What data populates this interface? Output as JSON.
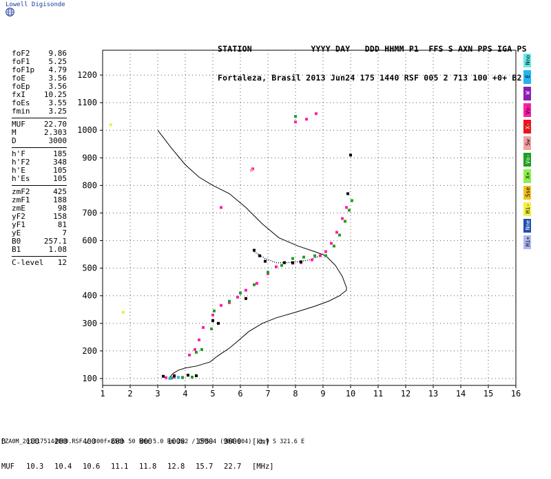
{
  "brand": "Lowell Digisonde",
  "header": {
    "line1": "STATION            YYYY DAY   DDD HHMM P1  FFS S AXN PPS IGA PS",
    "line2": "Fortaleza, Brasil 2013 Jun24 175 1440 RSF 005 2 713 100 +0+ B2"
  },
  "params": [
    {
      "label": "foF2",
      "value": "9.86"
    },
    {
      "label": "foF1",
      "value": "5.25"
    },
    {
      "label": "foF1p",
      "value": "4.79"
    },
    {
      "label": "foE",
      "value": "3.56"
    },
    {
      "label": "foEp",
      "value": "3.56"
    },
    {
      "label": "fxI",
      "value": "10.25"
    },
    {
      "label": "foEs",
      "value": "3.55"
    },
    {
      "label": "fmin",
      "value": "3.25"
    },
    {
      "label": "MUF",
      "value": "22.70",
      "sep": true
    },
    {
      "label": "M",
      "value": "2.303"
    },
    {
      "label": "D",
      "value": "3000"
    },
    {
      "label": "h'F",
      "value": "185",
      "sep": true
    },
    {
      "label": "h'F2",
      "value": "348"
    },
    {
      "label": "h'E",
      "value": "105"
    },
    {
      "label": "h'Es",
      "value": "105"
    },
    {
      "label": "zmF2",
      "value": "425",
      "sep": true
    },
    {
      "label": "zmF1",
      "value": "188"
    },
    {
      "label": "zmE",
      "value": "98"
    },
    {
      "label": "yF2",
      "value": "158"
    },
    {
      "label": "yF1",
      "value": "81"
    },
    {
      "label": "yE",
      "value": "7"
    },
    {
      "label": "B0",
      "value": "257.1"
    },
    {
      "label": "B1",
      "value": "1.08"
    },
    {
      "label": "C-level",
      "value": "12",
      "sep": true
    }
  ],
  "legend": [
    {
      "label": "Nno",
      "color": "#66e8e8"
    },
    {
      "label": "E",
      "color": "#22b5f0"
    },
    {
      "label": "W",
      "color": "#8a1fb3"
    },
    {
      "label": "Vo-",
      "color": "#ff1fa8"
    },
    {
      "label": "X-",
      "color": "#e8141e"
    },
    {
      "label": "Sw",
      "color": "#f2a0a0"
    },
    {
      "label": "Vo-",
      "color": "#1e9f1e"
    },
    {
      "label": "X+",
      "color": "#8cf04a"
    },
    {
      "label": "Sse",
      "color": "#f0c020"
    },
    {
      "label": "Hi-",
      "color": "#f0f040"
    },
    {
      "label": "Nne",
      "color": "#1f50b0"
    },
    {
      "label": "Hi+",
      "color": "#b0b8f0"
    }
  ],
  "muf_table": {
    "row1_label": "D",
    "row1": [
      "100",
      "200",
      "400",
      "600",
      "800",
      "1000",
      "1500",
      "3000",
      "[km]"
    ],
    "row2_label": "MUF",
    "row2": [
      "10.3",
      "10.4",
      "10.6",
      "11.1",
      "11.8",
      "12.8",
      "15.7",
      "22.7",
      "[MHz]"
    ]
  },
  "footer": "FZA0M_2013175144000.RSF / 300f×256h 50 kHz 5.0 km 2x2 / DPS-4 (904-904)  3.9 S 321.6 E",
  "chart_data": {
    "type": "scatter",
    "title": "",
    "xlabel": "",
    "ylabel": "",
    "xlim": [
      1,
      16
    ],
    "ylim": [
      75,
      1290
    ],
    "x_ticks": [
      1,
      2,
      3,
      4,
      5,
      6,
      7,
      8,
      9,
      10,
      11,
      12,
      13,
      14,
      15,
      16
    ],
    "y_ticks": [
      100,
      200,
      300,
      400,
      500,
      600,
      700,
      800,
      900,
      1000,
      1100,
      1200
    ],
    "grid": "dotted",
    "series": [
      {
        "name": "Vo-",
        "color": "#ff1fa8",
        "points": [
          [
            3.3,
            103
          ],
          [
            3.6,
            105
          ],
          [
            3.9,
            104
          ],
          [
            4.15,
            185
          ],
          [
            4.35,
            205
          ],
          [
            4.5,
            240
          ],
          [
            4.65,
            285
          ],
          [
            5.0,
            330
          ],
          [
            5.3,
            365
          ],
          [
            5.6,
            375
          ],
          [
            5.9,
            395
          ],
          [
            6.2,
            420
          ],
          [
            6.6,
            445
          ],
          [
            7.0,
            480
          ],
          [
            7.3,
            505
          ],
          [
            7.6,
            520
          ],
          [
            7.9,
            518
          ],
          [
            8.2,
            520
          ],
          [
            8.6,
            530
          ],
          [
            8.9,
            545
          ],
          [
            9.1,
            560
          ],
          [
            9.3,
            590
          ],
          [
            9.5,
            630
          ],
          [
            9.7,
            680
          ],
          [
            9.85,
            720
          ],
          [
            8.0,
            1030
          ],
          [
            8.4,
            1040
          ],
          [
            8.75,
            1060
          ],
          [
            6.45,
            860
          ],
          [
            5.3,
            720
          ]
        ]
      },
      {
        "name": "Vo-",
        "color": "#1e9f1e",
        "points": [
          [
            3.5,
            102
          ],
          [
            3.9,
            103
          ],
          [
            4.25,
            105
          ],
          [
            4.4,
            195
          ],
          [
            4.6,
            205
          ],
          [
            5.05,
            345
          ],
          [
            5.6,
            380
          ],
          [
            6.0,
            410
          ],
          [
            6.5,
            440
          ],
          [
            7.0,
            485
          ],
          [
            7.5,
            510
          ],
          [
            7.9,
            535
          ],
          [
            8.3,
            540
          ],
          [
            8.7,
            545
          ],
          [
            9.1,
            545
          ],
          [
            9.4,
            580
          ],
          [
            9.6,
            620
          ],
          [
            9.8,
            670
          ],
          [
            9.95,
            710
          ],
          [
            10.05,
            745
          ],
          [
            4.95,
            280
          ],
          [
            8.0,
            1050
          ]
        ]
      },
      {
        "name": "E",
        "color": "#22b5f0",
        "points": [
          [
            3.45,
            100
          ],
          [
            3.75,
            104
          ]
        ]
      },
      {
        "name": "Hi-",
        "color": "#f0f040",
        "points": [
          [
            1.3,
            1020
          ],
          [
            1.75,
            340
          ]
        ]
      },
      {
        "name": "Sw",
        "color": "#f2a0a0",
        "points": [
          [
            6.4,
            855
          ]
        ]
      },
      {
        "name": "noise",
        "color": "#000000",
        "points": [
          [
            3.2,
            108
          ],
          [
            3.6,
            110
          ],
          [
            4.1,
            112
          ],
          [
            4.4,
            110
          ],
          [
            6.5,
            565
          ],
          [
            6.7,
            545
          ],
          [
            6.9,
            525
          ],
          [
            5.0,
            310
          ],
          [
            5.2,
            300
          ],
          [
            6.2,
            390
          ],
          [
            7.6,
            520
          ],
          [
            7.9,
            520
          ],
          [
            8.2,
            523
          ],
          [
            10.0,
            910
          ],
          [
            9.9,
            770
          ]
        ]
      }
    ],
    "profile": [
      [
        3.0,
        1000
      ],
      [
        3.5,
        935
      ],
      [
        4.0,
        875
      ],
      [
        4.5,
        830
      ],
      [
        5.0,
        800
      ],
      [
        5.6,
        770
      ],
      [
        6.2,
        720
      ],
      [
        6.8,
        660
      ],
      [
        7.4,
        610
      ],
      [
        8.1,
        580
      ],
      [
        8.7,
        560
      ],
      [
        9.1,
        545
      ],
      [
        9.45,
        510
      ],
      [
        9.7,
        470
      ],
      [
        9.85,
        430
      ],
      [
        9.85,
        420
      ],
      [
        9.6,
        400
      ],
      [
        9.2,
        380
      ],
      [
        8.7,
        362
      ],
      [
        8.0,
        340
      ],
      [
        7.3,
        320
      ],
      [
        6.8,
        300
      ],
      [
        6.3,
        270
      ],
      [
        5.9,
        235
      ],
      [
        5.6,
        210
      ],
      [
        5.3,
        190
      ],
      [
        5.15,
        180
      ],
      [
        4.9,
        160
      ],
      [
        4.4,
        145
      ],
      [
        4.0,
        138
      ],
      [
        3.75,
        130
      ],
      [
        3.55,
        118
      ],
      [
        3.4,
        100
      ]
    ],
    "x_trace": [
      [
        6.5,
        560
      ],
      [
        6.9,
        535
      ],
      [
        7.3,
        520
      ],
      [
        7.7,
        520
      ],
      [
        8.1,
        523
      ],
      [
        8.5,
        530
      ],
      [
        8.9,
        545
      ]
    ]
  }
}
